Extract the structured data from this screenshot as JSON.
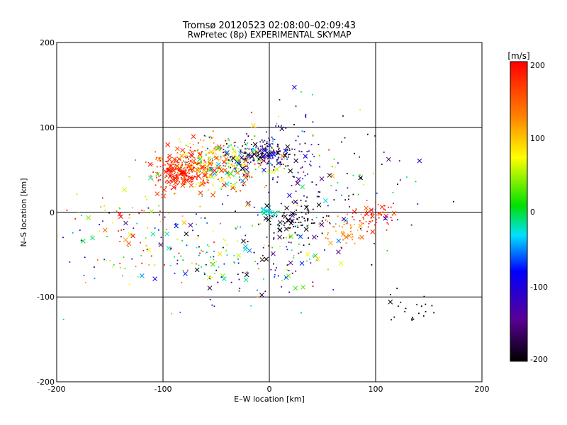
{
  "chart_data": {
    "type": "scatter",
    "title": "Tromsø 20120523 02:08:00–02:09:43",
    "subtitle": "RwPretec (8p) EXPERIMENTAL SKYMAP",
    "xlabel": "E–W location [km]",
    "ylabel": "N–S location [km]",
    "xlim": [
      -200,
      200
    ],
    "ylim": [
      -200,
      200
    ],
    "x_ticks": [
      "-200",
      "-100",
      "0",
      "100",
      "200"
    ],
    "y_ticks": [
      "-200",
      "-100",
      "0",
      "100",
      "200"
    ],
    "grid": true,
    "colorbar": {
      "label": "[m/s]",
      "range": [
        -200,
        200
      ],
      "ticks": [
        "200",
        "100",
        "0",
        "-100",
        "-200"
      ]
    },
    "marker_note": "small dots and large × markers, coloured by line-of-sight velocity",
    "clusters": [
      {
        "x": -85,
        "y": 48,
        "sx": 12,
        "sy": 10,
        "v_mean": 180,
        "v_spread": 25,
        "count": 260
      },
      {
        "x": -60,
        "y": 60,
        "sx": 18,
        "sy": 14,
        "v_mean": 120,
        "v_spread": 60,
        "count": 180
      },
      {
        "x": -30,
        "y": 55,
        "sx": 18,
        "sy": 15,
        "v_mean": 40,
        "v_spread": 80,
        "count": 200
      },
      {
        "x": -5,
        "y": 68,
        "sx": 14,
        "sy": 8,
        "v_mean": -150,
        "v_spread": 50,
        "count": 150
      },
      {
        "x": 20,
        "y": 70,
        "sx": 30,
        "sy": 25,
        "v_mean": -80,
        "v_spread": 120,
        "count": 120
      },
      {
        "x": 25,
        "y": -10,
        "sx": 15,
        "sy": 12,
        "v_mean": -190,
        "v_spread": 15,
        "count": 90
      },
      {
        "x": 70,
        "y": -22,
        "sx": 10,
        "sy": 8,
        "v_mean": 130,
        "v_spread": 15,
        "count": 45
      },
      {
        "x": 100,
        "y": -5,
        "sx": 10,
        "sy": 8,
        "v_mean": 180,
        "v_spread": 20,
        "count": 60
      },
      {
        "x": 135,
        "y": -115,
        "sx": 12,
        "sy": 12,
        "v_mean": -200,
        "v_spread": 5,
        "count": 22
      },
      {
        "x": -20,
        "y": -50,
        "sx": 45,
        "sy": 25,
        "v_mean": -60,
        "v_spread": 120,
        "count": 180
      },
      {
        "x": 60,
        "y": 20,
        "sx": 40,
        "sy": 25,
        "v_mean": -100,
        "v_spread": 100,
        "count": 80
      },
      {
        "x": -120,
        "y": -20,
        "sx": 40,
        "sy": 35,
        "v_mean": 60,
        "v_spread": 120,
        "count": 150
      },
      {
        "x": 0,
        "y": 0,
        "sx": 4,
        "sy": 3,
        "v_mean": -20,
        "v_spread": 10,
        "count": 25
      }
    ]
  }
}
